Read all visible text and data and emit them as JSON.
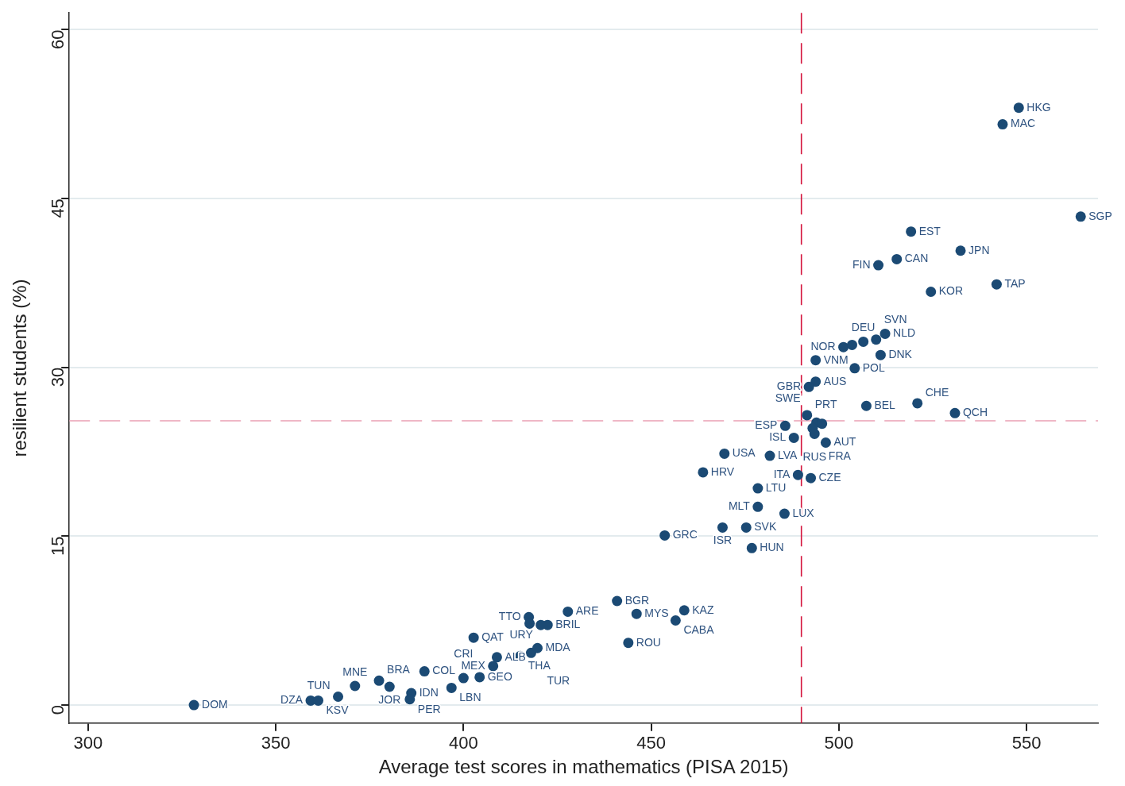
{
  "chart_data": {
    "type": "scatter",
    "xlabel": "Average test scores in mathematics (PISA 2015)",
    "ylabel": "resilient students (%)",
    "xlim": [
      295,
      569
    ],
    "xticks": [
      300,
      350,
      400,
      450,
      500,
      550
    ],
    "ylim": [
      -1.6,
      61.5
    ],
    "yticks": [
      0,
      15,
      30,
      45,
      60
    ],
    "grid": "y",
    "marker": "circle",
    "series": [
      {
        "color": "#1b4a74",
        "x": [
          328.2,
          359.3,
          361.3,
          366.6,
          371.1,
          377.5,
          380.3,
          386.1,
          385.7,
          389.6,
          396.8,
          400.0,
          404.3,
          402.7,
          407.9,
          408.9,
          415.1,
          418.0,
          419.7,
          417.4,
          417.6,
          420.6,
          422.4,
          427.8,
          440.9,
          446.1,
          458.8,
          456.5,
          443.9,
          453.6,
          469.5,
          481.6,
          463.8,
          478.4,
          489.1,
          492.5,
          478.4,
          485.5,
          469.0,
          475.3,
          476.8,
          512.3,
          509.9,
          501.2,
          503.5,
          506.5,
          511.1,
          493.8,
          504.2,
          493.8,
          492.0,
          507.3,
          491.5,
          485.7,
          488.0,
          496.5,
          494.0,
          495.5,
          493.5,
          493.0,
          520.9,
          530.9,
          547.9,
          543.6,
          564.4,
          519.2,
          532.4,
          515.4,
          510.5,
          542.0,
          524.5
        ],
        "values": [
          0,
          0.4,
          0.4,
          0.75,
          1.7,
          2.17,
          1.63,
          1.06,
          0.52,
          3.0,
          1.53,
          2.4,
          2.48,
          5.99,
          3.47,
          4.25,
          4.36,
          4.64,
          5.07,
          7.82,
          7.24,
          7.12,
          7.12,
          8.3,
          9.25,
          8.11,
          8.42,
          7.52,
          5.53,
          15.07,
          22.34,
          22.15,
          20.68,
          19.26,
          20.45,
          20.17,
          17.62,
          17.0,
          15.78,
          15.78,
          13.95,
          32.99,
          32.48,
          31.81,
          32.0,
          32.28,
          31.1,
          30.64,
          29.93,
          28.74,
          28.27,
          26.58,
          25.76,
          24.81,
          23.75,
          23.32,
          25.1,
          25.0,
          24.1,
          24.6,
          26.82,
          25.94,
          53.07,
          51.6,
          43.4,
          42.07,
          40.37,
          39.62,
          39.08,
          37.38,
          36.72
        ]
      }
    ],
    "ref_lines": [
      {
        "axis": "x",
        "value": 490,
        "color": "#d4143c",
        "line_style": "dashed"
      },
      {
        "axis": "y",
        "value": 25.26,
        "color": "#eaa0b4",
        "line_style": "dashed"
      }
    ],
    "annotations": [
      {
        "text": "DOM",
        "x": 328.2,
        "y": 0
      },
      {
        "text": "DZA",
        "x": 359.3,
        "y": 0.4
      },
      {
        "text": "KSV",
        "x": 361.3,
        "y": 0.4
      },
      {
        "text": "TUN",
        "x": 366.6,
        "y": 0.75
      },
      {
        "text": "MNE",
        "x": 371.1,
        "y": 1.7
      },
      {
        "text": "BRA",
        "x": 377.5,
        "y": 2.17
      },
      {
        "text": "JOR",
        "x": 380.3,
        "y": 1.63
      },
      {
        "text": "IDN",
        "x": 386.1,
        "y": 1.06
      },
      {
        "text": "PER",
        "x": 385.7,
        "y": 0.52
      },
      {
        "text": "COL",
        "x": 389.6,
        "y": 3.0
      },
      {
        "text": "LBN",
        "x": 396.8,
        "y": 1.53
      },
      {
        "text": "CRI",
        "x": 400.0,
        "y": 2.4
      },
      {
        "text": "GEO",
        "x": 404.3,
        "y": 2.48
      },
      {
        "text": "QAT",
        "x": 402.7,
        "y": 5.99
      },
      {
        "text": "MEX",
        "x": 407.9,
        "y": 3.47
      },
      {
        "text": "ALB",
        "x": 408.9,
        "y": 4.25
      },
      {
        "text": "THA",
        "x": 415.1,
        "y": 4.36
      },
      {
        "text": "TUR",
        "x": 418.0,
        "y": 4.64
      },
      {
        "text": "MDA",
        "x": 419.7,
        "y": 5.07
      },
      {
        "text": "TTO",
        "x": 417.4,
        "y": 7.82
      },
      {
        "text": "URY",
        "x": 420.6,
        "y": 7.12
      },
      {
        "text": "BRIL",
        "x": 422.4,
        "y": 7.12
      },
      {
        "text": "ARE",
        "x": 427.8,
        "y": 8.3
      },
      {
        "text": "BGR",
        "x": 440.9,
        "y": 9.25
      },
      {
        "text": "MYS",
        "x": 446.1,
        "y": 8.11
      },
      {
        "text": "KAZ",
        "x": 458.8,
        "y": 8.42
      },
      {
        "text": "CABA",
        "x": 456.5,
        "y": 7.52
      },
      {
        "text": "ROU",
        "x": 443.9,
        "y": 5.53
      },
      {
        "text": "GRC",
        "x": 453.6,
        "y": 15.07
      },
      {
        "text": "USA",
        "x": 469.5,
        "y": 22.34
      },
      {
        "text": "LVA",
        "x": 481.6,
        "y": 22.15
      },
      {
        "text": "HRV",
        "x": 463.8,
        "y": 20.68
      },
      {
        "text": "LTU",
        "x": 478.4,
        "y": 19.26
      },
      {
        "text": "ITA",
        "x": 489.1,
        "y": 20.45
      },
      {
        "text": "CZE",
        "x": 492.5,
        "y": 20.17
      },
      {
        "text": "MLT",
        "x": 478.4,
        "y": 17.62
      },
      {
        "text": "LUX",
        "x": 485.5,
        "y": 17.0
      },
      {
        "text": "ISR",
        "x": 469.0,
        "y": 15.78
      },
      {
        "text": "SVK",
        "x": 475.3,
        "y": 15.78
      },
      {
        "text": "HUN",
        "x": 476.8,
        "y": 13.95
      },
      {
        "text": "NLD",
        "x": 512.3,
        "y": 32.99
      },
      {
        "text": "SVN",
        "x": 509.9,
        "y": 32.48
      },
      {
        "text": "NOR",
        "x": 501.2,
        "y": 31.81
      },
      {
        "text": "DEU",
        "x": 506.5,
        "y": 32.28
      },
      {
        "text": "DNK",
        "x": 511.1,
        "y": 31.1
      },
      {
        "text": "VNM",
        "x": 493.8,
        "y": 30.64
      },
      {
        "text": "POL",
        "x": 504.2,
        "y": 29.93
      },
      {
        "text": "AUS",
        "x": 493.8,
        "y": 28.74
      },
      {
        "text": "GBR",
        "x": 492.0,
        "y": 28.27
      },
      {
        "text": "BEL",
        "x": 507.3,
        "y": 26.58
      },
      {
        "text": "PRT",
        "x": 491.5,
        "y": 25.76
      },
      {
        "text": "ESP",
        "x": 485.7,
        "y": 24.81
      },
      {
        "text": "ISL",
        "x": 488.0,
        "y": 23.75
      },
      {
        "text": "AUT",
        "x": 496.5,
        "y": 23.32
      },
      {
        "text": "SWE",
        "x": 494.0,
        "y": 25.1
      },
      {
        "text": "RUS",
        "x": 493.5,
        "y": 24.1
      },
      {
        "text": "FRA",
        "x": 493.0,
        "y": 24.6
      },
      {
        "text": "CHE",
        "x": 520.9,
        "y": 26.82
      },
      {
        "text": "QCH",
        "x": 530.9,
        "y": 25.94
      },
      {
        "text": "HKG",
        "x": 547.9,
        "y": 53.07
      },
      {
        "text": "MAC",
        "x": 543.6,
        "y": 51.6
      },
      {
        "text": "SGP",
        "x": 564.4,
        "y": 43.4
      },
      {
        "text": "EST",
        "x": 519.2,
        "y": 42.07
      },
      {
        "text": "JPN",
        "x": 532.4,
        "y": 40.37
      },
      {
        "text": "CAN",
        "x": 515.4,
        "y": 39.62
      },
      {
        "text": "FIN",
        "x": 510.5,
        "y": 39.08
      },
      {
        "text": "TAP",
        "x": 542.0,
        "y": 37.38
      },
      {
        "text": "KOR",
        "x": 524.5,
        "y": 36.72
      }
    ]
  }
}
